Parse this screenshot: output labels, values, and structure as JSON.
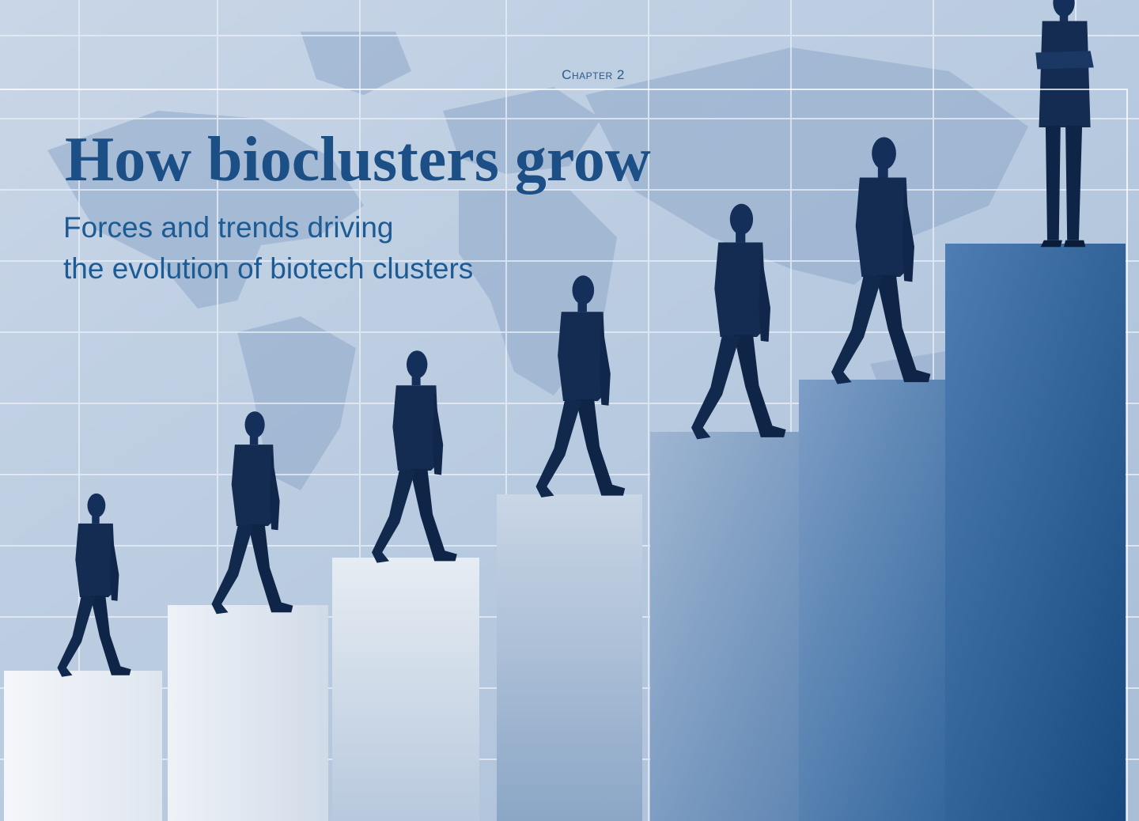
{
  "header": {
    "chapter": "Chapter 2"
  },
  "title": "How bioclusters grow",
  "subtitle": {
    "lines": [
      "Forces and trends driving",
      "the evolution of biotech clusters"
    ]
  }
}
